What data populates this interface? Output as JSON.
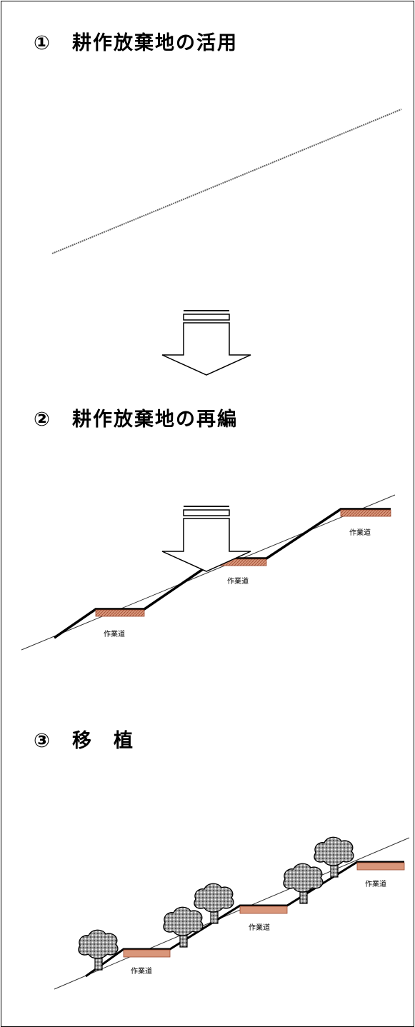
{
  "steps": [
    {
      "number": "①",
      "title": "耕作放棄地の活用"
    },
    {
      "number": "②",
      "title": "耕作放棄地の再編"
    },
    {
      "number": "③",
      "title": "移　植"
    }
  ],
  "road_label": "作業道",
  "colors": {
    "road_fill": "#d9967a",
    "road_top": "#000000",
    "slope_line": "#555555",
    "tree_fill": "#888888"
  }
}
